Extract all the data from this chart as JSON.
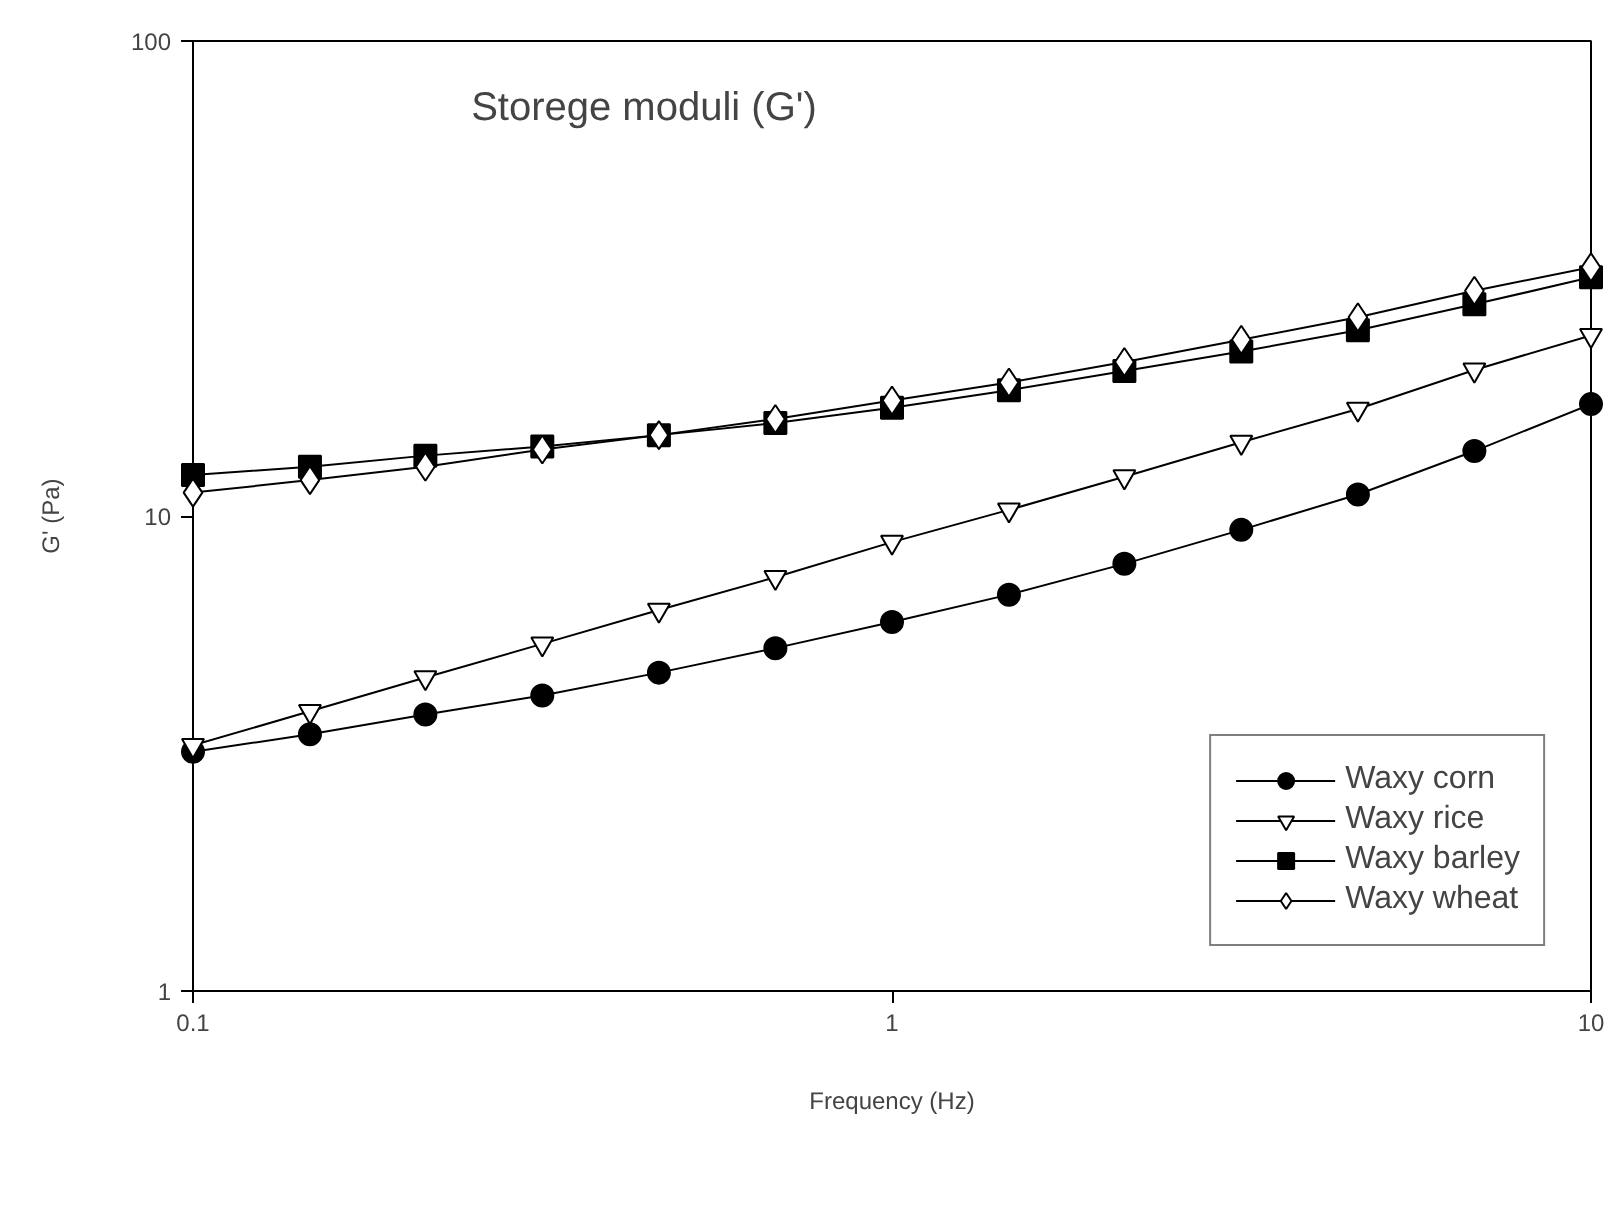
{
  "chart_data": {
    "type": "line",
    "title": "Storege moduli (G')",
    "xlabel": "Frequency (Hz)",
    "ylabel": "G' (Pa)",
    "x": [
      0.1,
      0.147,
      0.215,
      0.316,
      0.464,
      0.681,
      1,
      1.47,
      2.15,
      3.16,
      4.64,
      6.81,
      10
    ],
    "series": [
      {
        "name": "Waxy corn",
        "color": "#000000",
        "marker": "circle",
        "values": [
          3.19,
          3.47,
          3.82,
          4.19,
          4.68,
          5.27,
          5.98,
          6.83,
          7.93,
          9.35,
          11.1,
          13.7,
          17.2
        ]
      },
      {
        "name": "Waxy rice",
        "color": "#000000",
        "marker": "triangle",
        "values": [
          3.29,
          3.88,
          4.57,
          5.38,
          6.34,
          7.43,
          8.81,
          10.3,
          12.1,
          14.3,
          16.8,
          20.3,
          24.0
        ]
      },
      {
        "name": "Waxy barley",
        "color": "#000000",
        "marker": "square",
        "values": [
          12.2,
          12.7,
          13.4,
          14.0,
          14.8,
          15.7,
          16.9,
          18.4,
          20.2,
          22.2,
          24.6,
          27.9,
          31.8
        ]
      },
      {
        "name": "Waxy wheat",
        "color": "#000000",
        "marker": "diamond",
        "values": [
          11.2,
          11.9,
          12.7,
          13.8,
          14.8,
          16.0,
          17.5,
          19.1,
          21.1,
          23.5,
          26.2,
          29.8,
          33.4
        ]
      }
    ],
    "log": "xy",
    "xlim": [
      0.1,
      10
    ],
    "ylim": [
      1,
      100
    ],
    "xticks": [
      0.1,
      1,
      10
    ],
    "yticks": [
      1,
      10,
      100
    ],
    "grid": false,
    "legend": "bottom right",
    "line_style": "solid"
  }
}
